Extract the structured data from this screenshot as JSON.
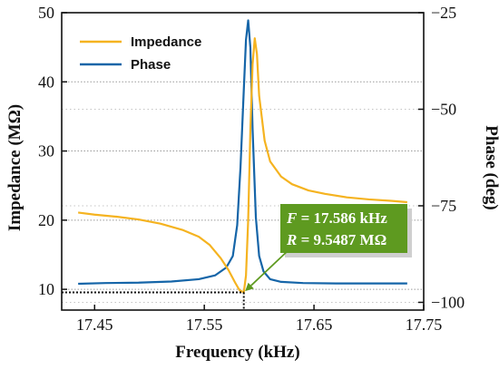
{
  "chart_data": {
    "type": "line",
    "xlabel": "Frequency (kHz)",
    "ylabel_left": "Impedance (MΩ)",
    "ylabel_right": "Phase (deg)",
    "xlim": [
      17.42,
      17.75
    ],
    "ylim_left": [
      7,
      50
    ],
    "ylim_right": [
      -102,
      -25
    ],
    "x_ticks": [
      "17.45",
      "17.55",
      "17.65",
      "17.75"
    ],
    "y_left_ticks": [
      "10",
      "20",
      "30",
      "40",
      "50"
    ],
    "y_right_ticks": [
      "−25",
      "−50",
      "−75",
      "−100"
    ],
    "grid": "horizontal dotted",
    "legend_position": "top-left",
    "colors": {
      "impedance": "#f5b320",
      "phase": "#1565a8",
      "annotation_box": "#5e9a20"
    },
    "series": [
      {
        "name": "Impedance",
        "axis": "left",
        "x": [
          17.435,
          17.45,
          17.47,
          17.49,
          17.51,
          17.53,
          17.545,
          17.555,
          17.565,
          17.572,
          17.578,
          17.582,
          17.586,
          17.588,
          17.59,
          17.592,
          17.594,
          17.596,
          17.598,
          17.6,
          17.605,
          17.61,
          17.62,
          17.63,
          17.645,
          17.66,
          17.68,
          17.7,
          17.72,
          17.735
        ],
        "values": [
          21.1,
          20.8,
          20.5,
          20.1,
          19.5,
          18.6,
          17.6,
          16.4,
          14.5,
          12.8,
          11.0,
          9.9,
          9.55,
          12.0,
          20.0,
          33.0,
          42.5,
          46.3,
          44.0,
          38.0,
          31.5,
          28.5,
          26.3,
          25.2,
          24.3,
          23.8,
          23.3,
          23.0,
          22.8,
          22.6
        ]
      },
      {
        "name": "Phase",
        "axis": "right",
        "x": [
          17.435,
          17.46,
          17.49,
          17.52,
          17.545,
          17.56,
          17.57,
          17.576,
          17.58,
          17.583,
          17.586,
          17.588,
          17.59,
          17.592,
          17.594,
          17.597,
          17.6,
          17.604,
          17.61,
          17.62,
          17.64,
          17.67,
          17.7,
          17.735
        ],
        "values": [
          -95.2,
          -95.0,
          -94.9,
          -94.6,
          -94.0,
          -93.0,
          -91.0,
          -88.0,
          -80.0,
          -65.0,
          -45.0,
          -32.0,
          -27.0,
          -34.0,
          -55.0,
          -78.0,
          -88.0,
          -92.0,
          -94.0,
          -94.7,
          -95.0,
          -95.1,
          -95.1,
          -95.1
        ]
      }
    ],
    "annotation": {
      "line1_var": "F",
      "line1_rest": " = 17.586 kHz",
      "line2_var": "R",
      "line2_rest": " = 9.5487 MΩ",
      "point": {
        "x": 17.586,
        "y": 9.5487
      }
    }
  }
}
